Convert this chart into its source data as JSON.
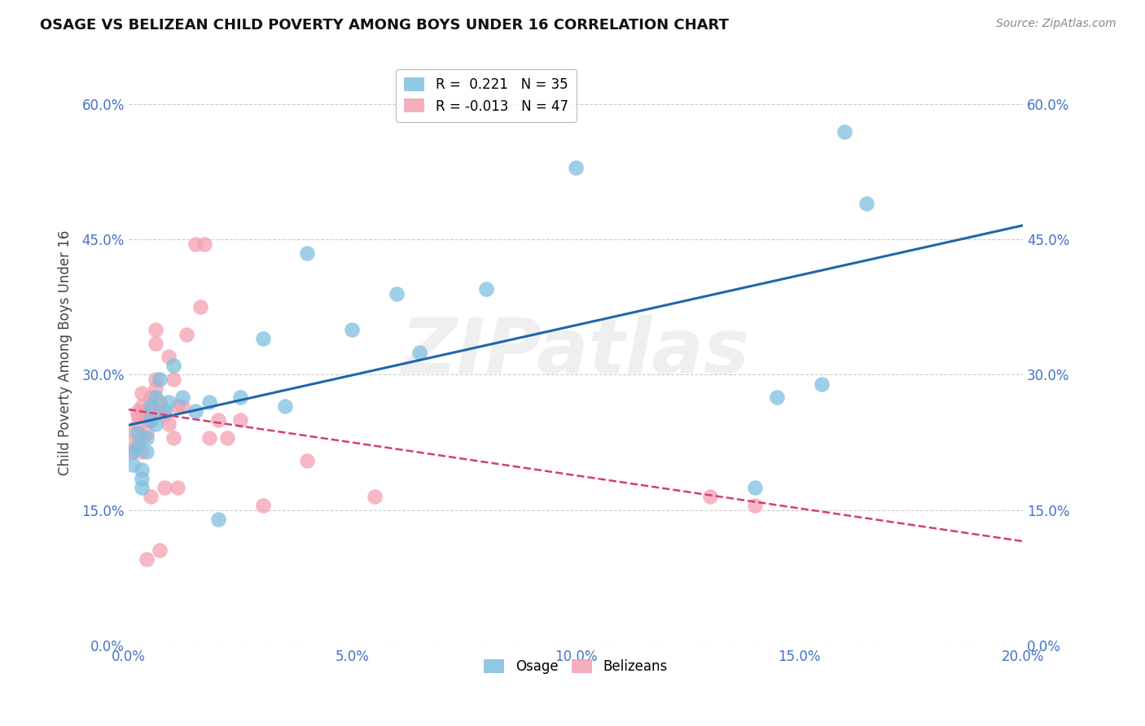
{
  "title": "OSAGE VS BELIZEAN CHILD POVERTY AMONG BOYS UNDER 16 CORRELATION CHART",
  "source": "Source: ZipAtlas.com",
  "ylabel": "Child Poverty Among Boys Under 16",
  "xlim": [
    0.0,
    0.2
  ],
  "ylim": [
    0.0,
    0.65
  ],
  "osage_R": 0.221,
  "osage_N": 35,
  "belizean_R": -0.013,
  "belizean_N": 47,
  "osage_color": "#7fbfdf",
  "belizean_color": "#f4a0b0",
  "trend_osage_color": "#2166ac",
  "trend_belizean_color": "#d63b7a",
  "watermark": "ZIPatlas",
  "osage_x": [
    0.001,
    0.001,
    0.002,
    0.002,
    0.003,
    0.003,
    0.003,
    0.004,
    0.004,
    0.005,
    0.005,
    0.006,
    0.006,
    0.007,
    0.008,
    0.009,
    0.01,
    0.012,
    0.015,
    0.018,
    0.02,
    0.025,
    0.03,
    0.035,
    0.04,
    0.05,
    0.06,
    0.065,
    0.08,
    0.1,
    0.14,
    0.145,
    0.155,
    0.16,
    0.165
  ],
  "osage_y": [
    0.215,
    0.2,
    0.235,
    0.22,
    0.195,
    0.185,
    0.175,
    0.23,
    0.215,
    0.265,
    0.25,
    0.275,
    0.245,
    0.295,
    0.26,
    0.27,
    0.31,
    0.275,
    0.26,
    0.27,
    0.14,
    0.275,
    0.34,
    0.265,
    0.435,
    0.35,
    0.39,
    0.325,
    0.395,
    0.53,
    0.175,
    0.275,
    0.29,
    0.57,
    0.49
  ],
  "belizean_x": [
    0.001,
    0.001,
    0.001,
    0.002,
    0.002,
    0.002,
    0.003,
    0.003,
    0.003,
    0.003,
    0.004,
    0.004,
    0.004,
    0.004,
    0.005,
    0.005,
    0.005,
    0.005,
    0.006,
    0.006,
    0.006,
    0.006,
    0.007,
    0.007,
    0.007,
    0.008,
    0.008,
    0.009,
    0.009,
    0.01,
    0.01,
    0.011,
    0.011,
    0.012,
    0.013,
    0.015,
    0.016,
    0.017,
    0.018,
    0.02,
    0.022,
    0.025,
    0.03,
    0.04,
    0.055,
    0.13,
    0.14
  ],
  "belizean_y": [
    0.235,
    0.22,
    0.215,
    0.26,
    0.255,
    0.245,
    0.28,
    0.265,
    0.23,
    0.215,
    0.26,
    0.25,
    0.235,
    0.095,
    0.275,
    0.265,
    0.25,
    0.165,
    0.35,
    0.335,
    0.295,
    0.285,
    0.27,
    0.26,
    0.105,
    0.255,
    0.175,
    0.245,
    0.32,
    0.295,
    0.23,
    0.265,
    0.175,
    0.265,
    0.345,
    0.445,
    0.375,
    0.445,
    0.23,
    0.25,
    0.23,
    0.25,
    0.155,
    0.205,
    0.165,
    0.165,
    0.155
  ]
}
